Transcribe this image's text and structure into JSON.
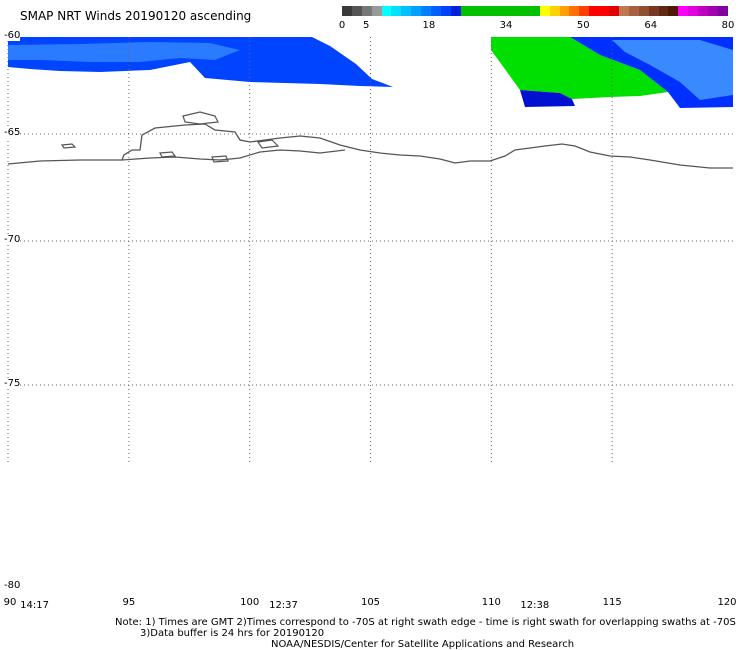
{
  "title": "SMAP NRT Winds 20190120 ascending",
  "colorbar": {
    "segments": [
      {
        "color": "#3a3a3a"
      },
      {
        "color": "#555555"
      },
      {
        "color": "#777777"
      },
      {
        "color": "#999999"
      },
      {
        "color": "#00ffff"
      },
      {
        "color": "#00e0ff"
      },
      {
        "color": "#00c0ff"
      },
      {
        "color": "#00a0ff"
      },
      {
        "color": "#0080ff"
      },
      {
        "color": "#0060ff"
      },
      {
        "color": "#0040ff"
      },
      {
        "color": "#0020e0"
      },
      {
        "color": "#00c000"
      },
      {
        "color": "#00c000"
      },
      {
        "color": "#00c000"
      },
      {
        "color": "#00c000"
      },
      {
        "color": "#00c000"
      },
      {
        "color": "#00c000"
      },
      {
        "color": "#00c000"
      },
      {
        "color": "#00c000"
      },
      {
        "color": "#ffff00"
      },
      {
        "color": "#ffd000"
      },
      {
        "color": "#ffa000"
      },
      {
        "color": "#ff7000"
      },
      {
        "color": "#ff4000"
      },
      {
        "color": "#ff0000"
      },
      {
        "color": "#ff0000"
      },
      {
        "color": "#e00000"
      },
      {
        "color": "#c07850"
      },
      {
        "color": "#a86040"
      },
      {
        "color": "#905030"
      },
      {
        "color": "#783820"
      },
      {
        "color": "#602810"
      },
      {
        "color": "#501800"
      },
      {
        "color": "#ff00ff"
      },
      {
        "color": "#e000e0"
      },
      {
        "color": "#c000c0"
      },
      {
        "color": "#a000b0"
      },
      {
        "color": "#8000a0"
      }
    ],
    "ticks": [
      {
        "label": "0",
        "value": 0
      },
      {
        "label": "5",
        "value": 5
      },
      {
        "label": "18",
        "value": 18
      },
      {
        "label": "34",
        "value": 34
      },
      {
        "label": "50",
        "value": 50
      },
      {
        "label": "64",
        "value": 64
      },
      {
        "label": "80",
        "value": 80
      }
    ]
  },
  "map": {
    "lon_range": [
      90,
      120
    ],
    "lat_range": [
      -60,
      -80
    ],
    "lat_gridlines": [
      -65,
      -70,
      -75
    ],
    "lon_gridlines": [
      95,
      100,
      105,
      110,
      115
    ],
    "lat_labels": [
      "-60",
      "-65",
      "-70",
      "-75",
      "-80"
    ],
    "lon_labels": [
      "90",
      "95",
      "100",
      "105",
      "110",
      "115",
      "120"
    ],
    "time_labels": [
      {
        "text": "14:17",
        "lon": 91.1
      },
      {
        "text": "12:37",
        "lon": 101.4
      },
      {
        "text": "12:38",
        "lon": 111.8
      }
    ],
    "swath_colors": {
      "blue": "#0044ff",
      "light_blue": "#2a7bff",
      "green": "#00e000",
      "dark_blue": "#0010d0"
    }
  },
  "notes": {
    "line1": "Note: 1) Times are GMT 2)Times correspond to -70S at right swath edge - time is right swath for overlapping swaths at -70S",
    "line2": "3)Data buffer is 24 hrs for 20190120",
    "credit": "NOAA/NESDIS/Center for Satellite Applications and Research"
  }
}
